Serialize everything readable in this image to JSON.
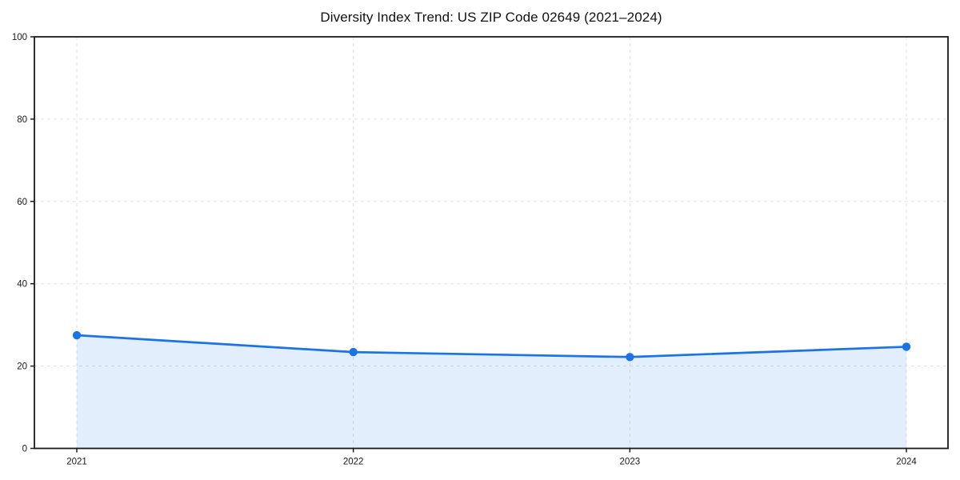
{
  "figure": {
    "background": "#ffffff"
  },
  "chart_data": {
    "type": "line",
    "title": "Diversity Index Trend: US ZIP Code 02649 (2021–2024)",
    "x": [
      "2021",
      "2022",
      "2023",
      "2024"
    ],
    "series": [
      {
        "name": "Diversity Index",
        "values": [
          27.5,
          23.4,
          22.2,
          24.7
        ]
      }
    ],
    "xlabel": "",
    "ylabel": "",
    "ylim": [
      0,
      100
    ],
    "yticks": [
      0,
      20,
      40,
      60,
      80,
      100
    ],
    "grid": true,
    "grid_style": "dashed",
    "grid_color": "#e2e2e2",
    "legend_position": "none",
    "line_color": "#1a73e8",
    "marker": "circle",
    "marker_color": "#1a73e8",
    "fill_below_line": true,
    "fill_color": "#1a73e8",
    "fill_opacity": 0.12,
    "spine_color": "#1a1a1a"
  }
}
